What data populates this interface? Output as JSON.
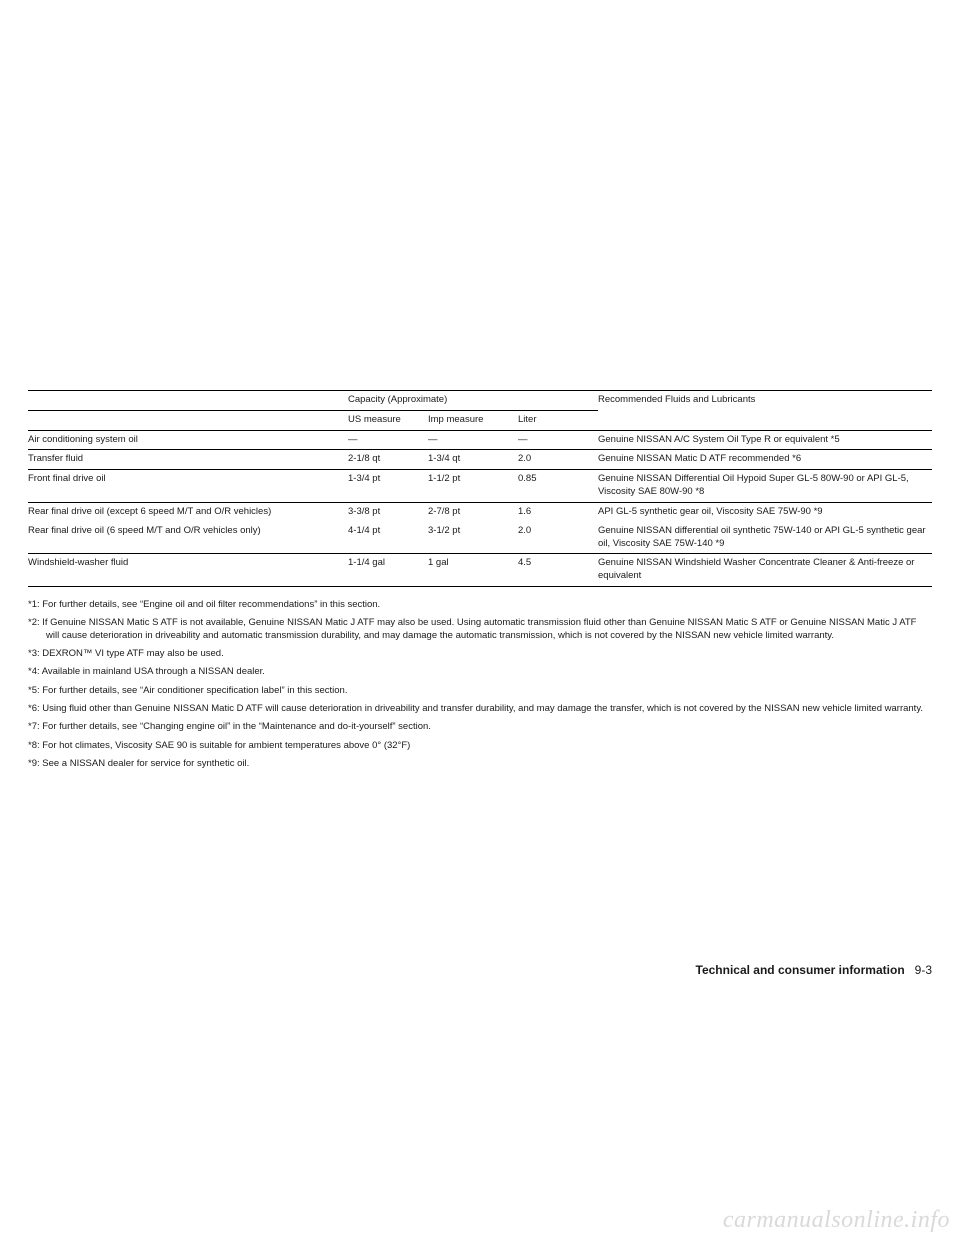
{
  "table": {
    "header": {
      "capacity_group": "Capacity (Approximate)",
      "recommended": "Recommended Fluids and Lubricants",
      "us": "US measure",
      "imp": "Imp measure",
      "liter": "Liter"
    },
    "rows": [
      {
        "name": "Air conditioning system oil",
        "us": "—",
        "imp": "—",
        "liter": "—",
        "rec": "Genuine NISSAN A/C System Oil Type R or equivalent *5",
        "rule": true
      },
      {
        "name": "Transfer fluid",
        "us": "2-1/8 qt",
        "imp": "1-3/4 qt",
        "liter": "2.0",
        "rec": "Genuine NISSAN Matic D ATF recommended *6",
        "rule": true
      },
      {
        "name": "Front final drive oil",
        "us": "1-3/4 pt",
        "imp": "1-1/2 pt",
        "liter": "0.85",
        "rec": "Genuine NISSAN Differential Oil Hypoid Super GL-5 80W-90 or API GL-5, Viscosity SAE 80W-90 *8",
        "rule": true
      },
      {
        "name": "Rear final drive oil (except 6 speed M/T and O/R vehicles)",
        "us": "3-3/8 pt",
        "imp": "2-7/8 pt",
        "liter": "1.6",
        "rec": "API GL-5 synthetic gear oil, Viscosity SAE 75W-90 *9",
        "rule": true
      },
      {
        "name": "Rear final drive oil (6 speed M/T and O/R vehicles only)",
        "us": "4-1/4 pt",
        "imp": "3-1/2 pt",
        "liter": "2.0",
        "rec": "Genuine NISSAN differential oil synthetic 75W-140 or API GL-5 synthetic gear oil, Viscosity SAE 75W-140 *9",
        "rule": false
      },
      {
        "name": "Windshield-washer fluid",
        "us": "1-1/4 gal",
        "imp": "1 gal",
        "liter": "4.5",
        "rec": "Genuine NISSAN Windshield Washer Concentrate Cleaner & Anti-freeze or equivalent",
        "rule": true
      }
    ]
  },
  "footnotes": [
    "*1: For further details, see “Engine oil and oil filter recommendations” in this section.",
    "*2: If Genuine NISSAN Matic S ATF is not available, Genuine NISSAN Matic J ATF may also be used. Using automatic transmission fluid other than Genuine NISSAN Matic S ATF or Genuine NISSAN Matic J ATF will cause deterioration in driveability and automatic transmission durability, and may damage the automatic transmission, which is not covered by the NISSAN new vehicle limited warranty.",
    "*3: DEXRON™ VI type ATF may also be used.",
    "*4: Available in mainland USA through a NISSAN dealer.",
    "*5: For further details, see “Air conditioner specification label” in this section.",
    "*6: Using fluid other than Genuine NISSAN Matic D ATF will cause deterioration in driveability and transfer durability, and may damage the transfer, which is not covered by the NISSAN new vehicle limited warranty.",
    "*7: For further details, see “Changing engine oil” in the “Maintenance and do-it-yourself” section.",
    "*8: For hot climates, Viscosity SAE 90 is suitable for ambient temperatures above 0° (32°F)",
    "*9: See a NISSAN dealer for service for synthetic oil."
  ],
  "footer": {
    "section": "Technical and consumer information",
    "page": "9-3"
  },
  "watermark": "carmanualsonline.info"
}
